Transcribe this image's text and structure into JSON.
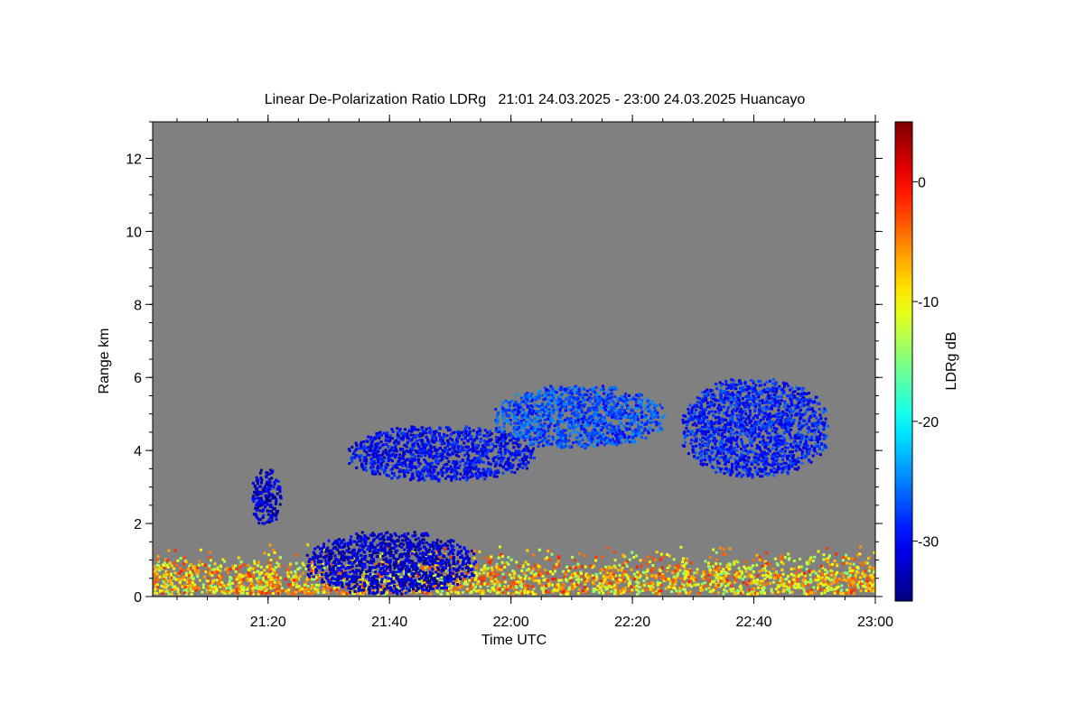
{
  "chart_data": {
    "type": "heatmap",
    "title": "Linear De-Polarization Ratio LDRg   21:01 24.03.2025 - 23:00 24.03.2025 Huancayo",
    "xlabel": "Time UTC",
    "ylabel": "Range km",
    "colorbar_label": "LDRg dB",
    "x_range_minutes_utc": [
      1261,
      1380
    ],
    "x_ticks": [
      {
        "label": "21:20",
        "value": 1280
      },
      {
        "label": "21:40",
        "value": 1300
      },
      {
        "label": "22:00",
        "value": 1320
      },
      {
        "label": "22:20",
        "value": 1340
      },
      {
        "label": "22:40",
        "value": 1360
      },
      {
        "label": "23:00",
        "value": 1380
      }
    ],
    "y_range_km": [
      0,
      13
    ],
    "y_ticks": [
      {
        "label": "0",
        "value": 0
      },
      {
        "label": "2",
        "value": 2
      },
      {
        "label": "4",
        "value": 4
      },
      {
        "label": "6",
        "value": 6
      },
      {
        "label": "8",
        "value": 8
      },
      {
        "label": "10",
        "value": 10
      },
      {
        "label": "12",
        "value": 12
      }
    ],
    "colorbar_range_db": [
      -35,
      5
    ],
    "colorbar_ticks": [
      {
        "label": "0",
        "value": 0
      },
      {
        "label": "-10",
        "value": -10
      },
      {
        "label": "-20",
        "value": -20
      },
      {
        "label": "-30",
        "value": -30
      }
    ],
    "colormap": "jet",
    "background_no_signal_color": "#808080",
    "features": [
      {
        "name": "low-boundary-layer",
        "t": [
          1261,
          1380
        ],
        "range_km": [
          0.1,
          1.5
        ],
        "ldr_db": -8
      },
      {
        "name": "precipitation-fall",
        "t": [
          1286,
          1314
        ],
        "range_km": [
          0.1,
          1.8
        ],
        "ldr_db": -32
      },
      {
        "name": "cloud-band-a",
        "t": [
          1293,
          1324
        ],
        "range_km": [
          3.2,
          4.7
        ],
        "ldr_db": -30
      },
      {
        "name": "cloud-band-b",
        "t": [
          1317,
          1345
        ],
        "range_km": [
          4.1,
          5.8
        ],
        "ldr_db": -27
      },
      {
        "name": "cloud-band-c",
        "t": [
          1348,
          1372
        ],
        "range_km": [
          3.3,
          6.0
        ],
        "ldr_db": -29
      },
      {
        "name": "thin-layer-arc",
        "t": [
          1277,
          1282
        ],
        "range_km": [
          2.0,
          3.5
        ],
        "ldr_db": -32
      }
    ]
  }
}
